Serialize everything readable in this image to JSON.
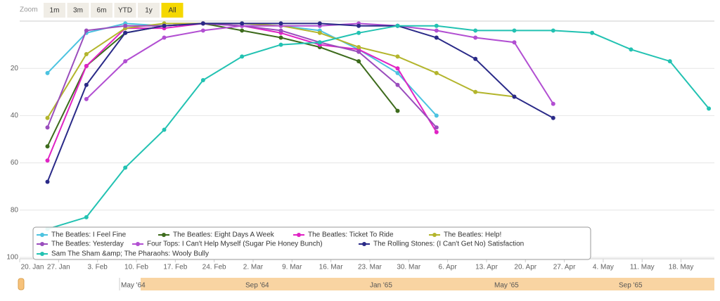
{
  "chart_data": {
    "type": "line",
    "zoom_label": "Zoom",
    "range_buttons": [
      "1m",
      "3m",
      "6m",
      "YTD",
      "1y",
      "All"
    ],
    "selected_range": "All",
    "x": [
      "1964-01-25",
      "1964-02-01",
      "1964-02-08",
      "1964-02-15",
      "1964-02-22",
      "1964-02-29",
      "1964-03-07",
      "1964-03-14",
      "1964-03-21",
      "1964-03-28",
      "1964-04-04",
      "1964-04-11",
      "1964-04-18",
      "1964-04-25",
      "1964-05-02",
      "1964-05-09",
      "1964-05-16",
      "1964-05-23"
    ],
    "xlim": [
      "1964-01-20",
      "1964-05-24"
    ],
    "xticks": [
      {
        "value": "1964-01-20",
        "label": "20. Jan"
      },
      {
        "value": "1964-01-27",
        "label": "27. Jan"
      },
      {
        "value": "1964-02-03",
        "label": "3. Feb"
      },
      {
        "value": "1964-02-10",
        "label": "10. Feb"
      },
      {
        "value": "1964-02-17",
        "label": "17. Feb"
      },
      {
        "value": "1964-02-24",
        "label": "24. Feb"
      },
      {
        "value": "1964-03-02",
        "label": "2. Mar"
      },
      {
        "value": "1964-03-09",
        "label": "9. Mar"
      },
      {
        "value": "1964-03-16",
        "label": "16. Mar"
      },
      {
        "value": "1964-03-23",
        "label": "23. Mar"
      },
      {
        "value": "1964-03-30",
        "label": "30. Mar"
      },
      {
        "value": "1964-04-06",
        "label": "6. Apr"
      },
      {
        "value": "1964-04-13",
        "label": "13. Apr"
      },
      {
        "value": "1964-04-20",
        "label": "20. Apr"
      },
      {
        "value": "1964-04-27",
        "label": "27. Apr"
      },
      {
        "value": "1964-05-04",
        "label": "4. May"
      },
      {
        "value": "1964-05-11",
        "label": "11. May"
      },
      {
        "value": "1964-05-18",
        "label": "18. May"
      }
    ],
    "ylim": [
      0,
      100
    ],
    "yticks": [
      20,
      40,
      60,
      80,
      100
    ],
    "reversed": true,
    "grid": true,
    "legend": "bottom-left",
    "series": [
      {
        "name": "The Beatles: I Feel Fine",
        "color": "#4cc3e0",
        "values": [
          22,
          5,
          1,
          2,
          1,
          1,
          2,
          4,
          12,
          22,
          40,
          null,
          null,
          null,
          null,
          null,
          null,
          null
        ]
      },
      {
        "name": "The Beatles: Eight Days A Week",
        "color": "#3d6b1c",
        "values": [
          53,
          19,
          5,
          2,
          1,
          4,
          7,
          11,
          17,
          38,
          null,
          null,
          null,
          null,
          null,
          null,
          null,
          null
        ]
      },
      {
        "name": "The Beatles: Ticket To Ride",
        "color": "#e023c4",
        "values": [
          59,
          19,
          3,
          3,
          1,
          2,
          5,
          10,
          12,
          20,
          47,
          null,
          null,
          null,
          null,
          null,
          null,
          null
        ]
      },
      {
        "name": "The Beatles: Help!",
        "color": "#b3b52c",
        "values": [
          41,
          14,
          3,
          1,
          1,
          1,
          2,
          5,
          11,
          15,
          22,
          30,
          32,
          null,
          null,
          null,
          null,
          null
        ]
      },
      {
        "name": "The Beatles: Yesterday",
        "color": "#9a4dbd",
        "values": [
          45,
          4,
          2,
          2,
          1,
          2,
          4,
          9,
          13,
          27,
          45,
          null,
          null,
          null,
          null,
          null,
          null,
          null
        ]
      },
      {
        "name": "Four Tops: I Can't Help Myself (Sugar Pie Honey Bunch)",
        "color": "#b24fd2",
        "values": [
          null,
          33,
          17,
          7,
          4,
          2,
          2,
          2,
          1,
          2,
          4,
          7,
          9,
          35,
          null,
          null,
          null,
          null
        ]
      },
      {
        "name": "The Rolling Stones: (I Can't Get No) Satisfaction",
        "color": "#2a2a88",
        "values": [
          68,
          27,
          5,
          2,
          1,
          1,
          1,
          1,
          2,
          2,
          7,
          16,
          32,
          41,
          null,
          null,
          null,
          null
        ]
      },
      {
        "name": "Sam The Sham &amp; The Pharaohs: Wooly Bully",
        "color": "#22c2b2",
        "values": [
          88,
          83,
          62,
          46,
          25,
          15,
          10,
          9,
          5,
          2,
          2,
          4,
          4,
          4,
          5,
          12,
          17,
          37
        ]
      }
    ],
    "navigator_labels": [
      "May '64",
      "Sep '64",
      "Jan '65",
      "May '65",
      "Sep '65"
    ]
  }
}
